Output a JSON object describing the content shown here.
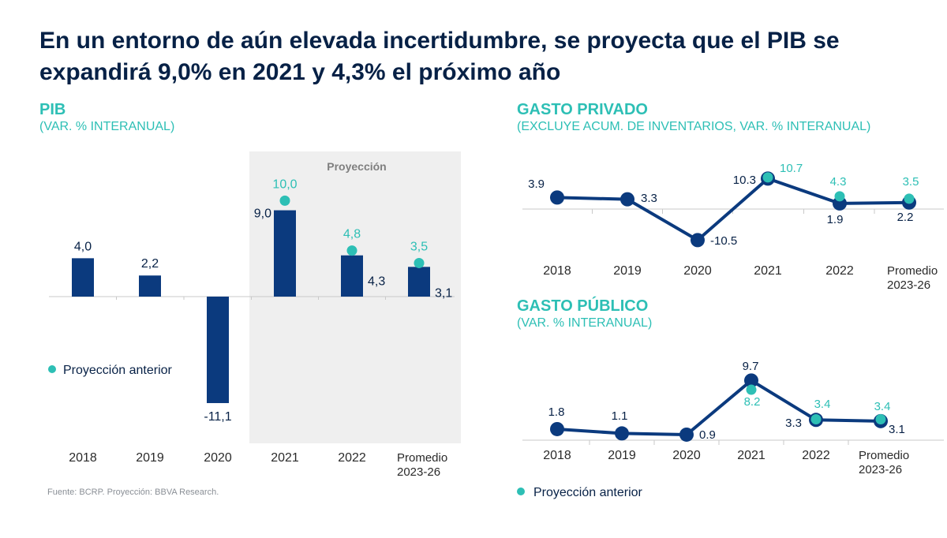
{
  "title": "En un entorno de aún elevada incertidumbre, se proyecta que el PIB se expandirá 9,0% en 2021 y 4,3% el próximo año",
  "source": "Fuente: BCRP. Proyección: BBVA Research.",
  "colors": {
    "title": "#072146",
    "accent": "#2dbfb5",
    "bar": "#0b3a7e",
    "line": "#0b3a7e",
    "shade": "#efefef"
  },
  "legend_label": "Proyección anterior",
  "projection_label": "Proyección",
  "chart_data": [
    {
      "id": "pib",
      "type": "bar",
      "title": "PIB",
      "subtitle": "(VAR. % INTERANUAL)",
      "categories": [
        "2018",
        "2019",
        "2020",
        "2021",
        "2022",
        "Promedio 2023-26"
      ],
      "category_lines": [
        [
          "2018"
        ],
        [
          "2019"
        ],
        [
          "2020"
        ],
        [
          "2021"
        ],
        [
          "2022"
        ],
        [
          "Promedio",
          "2023-26"
        ]
      ],
      "series": [
        {
          "values": [
            4.0,
            2.2,
            -11.1,
            9.0,
            4.3,
            3.1
          ],
          "labels": [
            "4,0",
            "2,2",
            "-11,1",
            "9,0",
            "4,3",
            "3,1"
          ]
        },
        {
          "name": "Proyección anterior",
          "type": "scatter",
          "values": [
            null,
            null,
            null,
            10.0,
            4.8,
            3.5
          ],
          "labels": [
            "",
            "",
            "",
            "10,0",
            "4,8",
            "3,5"
          ]
        }
      ],
      "projection_start": "2021",
      "legend": "left"
    },
    {
      "id": "gasto_privado",
      "type": "line",
      "title": "GASTO PRIVADO",
      "subtitle": "(EXCLUYE ACUM. DE INVENTARIOS, VAR. % INTERANUAL)",
      "categories": [
        "2018",
        "2019",
        "2020",
        "2021",
        "2022",
        "Promedio 2023-26"
      ],
      "category_lines": [
        [
          "2018"
        ],
        [
          "2019"
        ],
        [
          "2020"
        ],
        [
          "2021"
        ],
        [
          "2022"
        ],
        [
          "Promedio",
          "2023-26"
        ]
      ],
      "series": [
        {
          "values": [
            3.9,
            3.3,
            -10.5,
            10.3,
            1.9,
            2.2
          ],
          "labels": [
            "3.9",
            "3.3",
            "-10.5",
            "10.3",
            "1.9",
            "2.2"
          ]
        },
        {
          "name": "Proyección anterior",
          "type": "scatter",
          "values": [
            null,
            null,
            null,
            10.7,
            4.3,
            3.5
          ],
          "labels": [
            "",
            "",
            "",
            "10.7",
            "4.3",
            "3.5"
          ]
        }
      ]
    },
    {
      "id": "gasto_publico",
      "type": "line",
      "title": "GASTO PÚBLICO",
      "subtitle": "(VAR. % INTERANUAL)",
      "categories": [
        "2018",
        "2019",
        "2020",
        "2021",
        "2022",
        "Promedio 2023-26"
      ],
      "category_lines": [
        [
          "2018"
        ],
        [
          "2019"
        ],
        [
          "2020"
        ],
        [
          "2021"
        ],
        [
          "2022"
        ],
        [
          "Promedio",
          "2023-26"
        ]
      ],
      "series": [
        {
          "values": [
            1.8,
            1.1,
            0.9,
            9.7,
            3.3,
            3.1
          ],
          "labels": [
            "1.8",
            "1.1",
            "0.9",
            "9.7",
            "3.3",
            "3.1"
          ]
        },
        {
          "name": "Proyección anterior",
          "type": "scatter",
          "values": [
            null,
            null,
            null,
            8.2,
            3.4,
            3.4
          ],
          "labels": [
            "",
            "",
            "",
            "8.2",
            "3.4",
            "3.4"
          ]
        }
      ],
      "legend": "bottom-left"
    }
  ]
}
